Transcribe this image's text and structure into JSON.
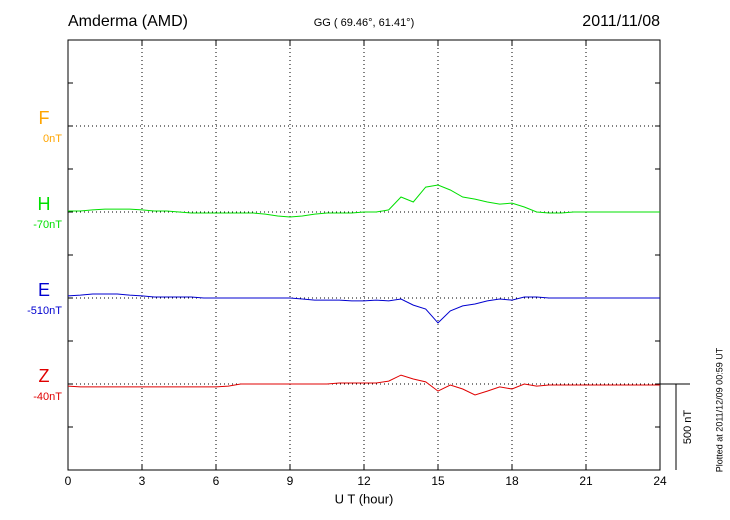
{
  "chart_data": {
    "type": "line",
    "title": "Amderma (AMD)",
    "subtitle": "GG ( 69.46°,  61.41°)",
    "date": "2011/11/08",
    "xlabel": "U T (hour)",
    "note": "Plotted at 2011/12/09 00:59 UT",
    "xlim": [
      0,
      24
    ],
    "xticks": [
      0,
      3,
      6,
      9,
      12,
      15,
      18,
      21,
      24
    ],
    "grid": true,
    "scale_bar": {
      "value": 500,
      "label": "500 nT"
    },
    "x": [
      0,
      0.5,
      1,
      1.5,
      2,
      2.5,
      3,
      3.5,
      4,
      4.5,
      5,
      5.5,
      6,
      6.5,
      7,
      7.5,
      8,
      8.5,
      9,
      9.5,
      10,
      10.5,
      11,
      11.5,
      12,
      12.5,
      13,
      13.5,
      14,
      14.5,
      15,
      15.5,
      16,
      16.5,
      17,
      17.5,
      18,
      18.5,
      19,
      19.5,
      20,
      20.5,
      21,
      21.5,
      22,
      22.5,
      23,
      23.5,
      24
    ],
    "series": [
      {
        "name": "F",
        "base_label": "0nT",
        "color": "#ffa500",
        "values": [
          null,
          null,
          null,
          null,
          null,
          null,
          null,
          null,
          null,
          null,
          null,
          null,
          null,
          null,
          null,
          null,
          null,
          null,
          null,
          null,
          null,
          null,
          null,
          null,
          null,
          null,
          null,
          null,
          null,
          null,
          null,
          null,
          null,
          null,
          null,
          null,
          null,
          null,
          null,
          null,
          null,
          null,
          null,
          null,
          null,
          null,
          null,
          null,
          null
        ]
      },
      {
        "name": "H",
        "base_label": "-70nT",
        "color": "#00e000",
        "values": [
          6,
          6,
          12,
          17,
          17,
          17,
          12,
          6,
          6,
          0,
          -6,
          -6,
          -6,
          -6,
          -6,
          -6,
          -12,
          -23,
          -29,
          -23,
          -12,
          -6,
          -6,
          -6,
          0,
          0,
          12,
          87,
          58,
          145,
          157,
          128,
          87,
          75,
          58,
          46,
          52,
          29,
          0,
          -6,
          -6,
          0,
          0,
          0,
          0,
          0,
          0,
          0,
          0
        ]
      },
      {
        "name": "E",
        "base_label": "-510nT",
        "color": "#0000d0",
        "values": [
          12,
          17,
          23,
          23,
          23,
          17,
          12,
          6,
          6,
          6,
          6,
          0,
          0,
          0,
          0,
          0,
          0,
          0,
          0,
          -6,
          -12,
          -12,
          -12,
          -17,
          -17,
          -12,
          -17,
          -6,
          -41,
          -64,
          -145,
          -75,
          -46,
          -35,
          -17,
          -6,
          -12,
          6,
          6,
          0,
          0,
          0,
          0,
          0,
          0,
          0,
          0,
          0,
          0
        ]
      },
      {
        "name": "Z",
        "base_label": "-40nT",
        "color": "#e00000",
        "values": [
          -12,
          -17,
          -17,
          -17,
          -17,
          -17,
          -17,
          -17,
          -17,
          -17,
          -17,
          -17,
          -17,
          -12,
          0,
          0,
          0,
          0,
          0,
          0,
          0,
          0,
          6,
          6,
          6,
          6,
          17,
          52,
          29,
          12,
          -41,
          -6,
          -29,
          -64,
          -41,
          -17,
          -29,
          0,
          -12,
          -6,
          -6,
          -6,
          -6,
          -6,
          -6,
          -6,
          -6,
          -6,
          -6
        ]
      }
    ]
  }
}
